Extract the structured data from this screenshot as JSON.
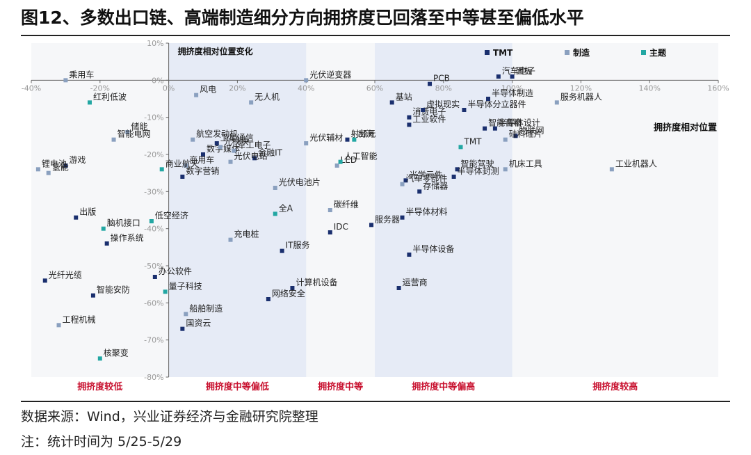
{
  "title": "图12、多数出口链、高端制造细分方向拥挤度已回落至中等甚至偏低水平",
  "source": "数据来源：Wind，兴业证券经济与金融研究院整理",
  "note": "注：统计时间为 5/25-5/29",
  "colors": {
    "TMT": "#1a2f6e",
    "制造": "#8aa0bf",
    "主题": "#23a7a3",
    "zone": "#e6ebf6",
    "band_label": "#c8102e"
  },
  "chart_data": {
    "type": "scatter",
    "title": "",
    "xlabel": "拥挤度相对位置",
    "ylabel": "拥挤度相对位置变化",
    "xlim": [
      -40,
      160
    ],
    "ylim": [
      -80,
      10
    ],
    "x_ticks": [
      "-40%",
      "-20%",
      "0%",
      "20%",
      "40%",
      "60%",
      "80%",
      "100%",
      "120%",
      "140%",
      "160%"
    ],
    "y_ticks": [
      "10%",
      "0%",
      "-10%",
      "-20%",
      "-30%",
      "-40%",
      "-50%",
      "-60%",
      "-70%",
      "-80%"
    ],
    "legend": {
      "position": "top-right",
      "items": [
        "TMT",
        "制造",
        "主题"
      ]
    },
    "bands": [
      {
        "label": "拥挤度较低",
        "range": [
          -40,
          0
        ]
      },
      {
        "label": "拥挤度中等偏低",
        "range": [
          0,
          40
        ]
      },
      {
        "label": "拥挤度中等",
        "range": [
          40,
          60
        ]
      },
      {
        "label": "拥挤度中等偏高",
        "range": [
          60,
          100
        ]
      },
      {
        "label": "拥挤度较高",
        "range": [
          100,
          160
        ]
      }
    ],
    "shaded_ranges": [
      [
        0,
        40
      ],
      [
        60,
        100
      ]
    ],
    "series": [
      {
        "name": "TMT",
        "points": [
          {
            "label": "游戏",
            "x": -30,
            "y": -23
          },
          {
            "label": "出版",
            "x": -27,
            "y": -37
          },
          {
            "label": "操作系统",
            "x": -18,
            "y": -44
          },
          {
            "label": "光纤光缆",
            "x": -36,
            "y": -54
          },
          {
            "label": "智能安防",
            "x": -22,
            "y": -58
          },
          {
            "label": "办公软件",
            "x": -4,
            "y": -53
          },
          {
            "label": "数字营销",
            "x": 4,
            "y": -26
          },
          {
            "label": "卫星通信",
            "x": 14,
            "y": -17
          },
          {
            "label": "数字媒体",
            "x": 10,
            "y": -20
          },
          {
            "label": "金融IT",
            "x": 25,
            "y": -21
          },
          {
            "label": "IT服务",
            "x": 33,
            "y": -46
          },
          {
            "label": "计算机设备",
            "x": 36,
            "y": -56
          },
          {
            "label": "网络安全",
            "x": 29,
            "y": -59
          },
          {
            "label": "国资云",
            "x": 4,
            "y": -67
          },
          {
            "label": "射频元",
            "x": 52,
            "y": -16
          },
          {
            "label": "IDC",
            "x": 47,
            "y": -41
          },
          {
            "label": "服务器",
            "x": 59,
            "y": -39
          },
          {
            "label": "基站",
            "x": 65,
            "y": -6
          },
          {
            "label": "PCB",
            "x": 76,
            "y": -1
          },
          {
            "label": "消费电子",
            "x": 70,
            "y": -10
          },
          {
            "label": "虚拟现实",
            "x": 74,
            "y": -8
          },
          {
            "label": "工业软件",
            "x": 70,
            "y": -12
          },
          {
            "label": "半导体分立器件",
            "x": 86,
            "y": -8
          },
          {
            "label": "半导体制造",
            "x": 93,
            "y": -5
          },
          {
            "label": "汽车电子",
            "x": 96,
            "y": 1
          },
          {
            "label": "面板",
            "x": 100,
            "y": 1
          },
          {
            "label": "智能音箱",
            "x": 92,
            "y": -13
          },
          {
            "label": "半导体设计",
            "x": 95,
            "y": -13
          },
          {
            "label": "物联网",
            "x": 101,
            "y": -15
          },
          {
            "label": "光学元件",
            "x": 69,
            "y": -27
          },
          {
            "label": "存储器",
            "x": 73,
            "y": -30
          },
          {
            "label": "半导体材料",
            "x": 68,
            "y": -37
          },
          {
            "label": "半导体设备",
            "x": 70,
            "y": -47
          },
          {
            "label": "运营商",
            "x": 67,
            "y": -56
          },
          {
            "label": "智能驾驶",
            "x": 84,
            "y": -24
          },
          {
            "label": "半导体封测",
            "x": 83,
            "y": -26
          }
        ]
      },
      {
        "name": "制造",
        "points": [
          {
            "label": "乘用车",
            "x": -30,
            "y": 0
          },
          {
            "label": "储能",
            "x": -12,
            "y": -14
          },
          {
            "label": "智能电网",
            "x": -16,
            "y": -16
          },
          {
            "label": "锂电池",
            "x": -38,
            "y": -24
          },
          {
            "label": "氢能",
            "x": -35,
            "y": -25
          },
          {
            "label": "工程机械",
            "x": -32,
            "y": -66
          },
          {
            "label": "风电",
            "x": 8,
            "y": -4
          },
          {
            "label": "航空发动机",
            "x": 7,
            "y": -16
          },
          {
            "label": "光模块",
            "x": 15,
            "y": -18
          },
          {
            "label": "军工电子",
            "x": 19,
            "y": -19
          },
          {
            "label": "光伏电站",
            "x": 18,
            "y": -22
          },
          {
            "label": "商用车",
            "x": 5,
            "y": -23
          },
          {
            "label": "无人机",
            "x": 24,
            "y": -6
          },
          {
            "label": "光伏辅材",
            "x": 40,
            "y": -17
          },
          {
            "label": "光伏电池片",
            "x": 31,
            "y": -29
          },
          {
            "label": "充电桩",
            "x": 18,
            "y": -43
          },
          {
            "label": "船舶制造",
            "x": 5,
            "y": -63
          },
          {
            "label": "光伏逆变器",
            "x": 40,
            "y": 0
          },
          {
            "label": "碳纤维",
            "x": 47,
            "y": -35
          },
          {
            "label": "汽车零部件",
            "x": 68,
            "y": -28
          },
          {
            "label": "硅料硅片",
            "x": 98,
            "y": -16
          },
          {
            "label": "机床工具",
            "x": 98,
            "y": -24
          },
          {
            "label": "服务机器人",
            "x": 113,
            "y": -6
          },
          {
            "label": "工业机器人",
            "x": 129,
            "y": -24
          },
          {
            "label": "LED",
            "x": 49,
            "y": -23
          }
        ]
      },
      {
        "name": "主题",
        "points": [
          {
            "label": "红利低波",
            "x": -23,
            "y": -6
          },
          {
            "label": "商业航天",
            "x": -2,
            "y": -24
          },
          {
            "label": "脑机接口",
            "x": -19,
            "y": -40
          },
          {
            "label": "低空经济",
            "x": -5,
            "y": -38
          },
          {
            "label": "量子科技",
            "x": -1,
            "y": -57
          },
          {
            "label": "核聚变",
            "x": -20,
            "y": -75
          },
          {
            "label": "全A",
            "x": 31,
            "y": -36
          },
          {
            "label": "出海",
            "x": 54,
            "y": -16
          },
          {
            "label": "人工智能",
            "x": 50,
            "y": -22
          },
          {
            "label": "TMT",
            "x": 85,
            "y": -18
          }
        ]
      }
    ]
  }
}
